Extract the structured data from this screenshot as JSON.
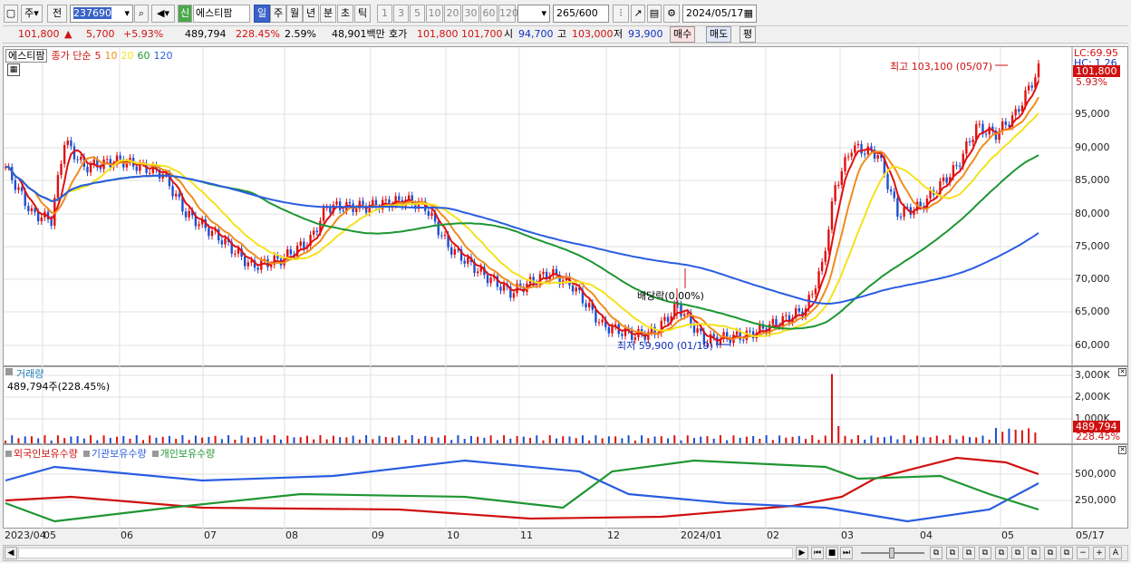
{
  "toolbar": {
    "market": "주",
    "prev": "전",
    "code": "237690",
    "market_tag": "신",
    "name": "에스티팜",
    "periods": [
      "일",
      "주",
      "월",
      "년",
      "분",
      "초",
      "틱"
    ],
    "active_period": "일",
    "intervals": [
      "1",
      "3",
      "5",
      "10",
      "20",
      "30",
      "60",
      "120"
    ],
    "count": "265",
    "count_max": "/600",
    "date": "2024/05/17"
  },
  "quote": {
    "price": "101,800",
    "change": "5,700",
    "rate": "+5.93%",
    "volume": "489,794",
    "vol_rate": "228.45%",
    "turnover": "2.59%",
    "amount": "48,901백만",
    "ask_label": "호가",
    "ask": "101,800",
    "bid": "101,700",
    "open_label": "시",
    "open": "94,700",
    "high_label": "고",
    "high": "103,000",
    "low_label": "저",
    "low": "93,900",
    "buy": "매수",
    "sell": "매도",
    "eval": "평"
  },
  "price_panel": {
    "legend_name": "에스티팜",
    "legend_type": "종가 단순",
    "ma": [
      "5",
      "10",
      "20",
      "60",
      "120"
    ],
    "ma_colors": [
      "#e01010",
      "#f08c1e",
      "#f4e21e",
      "#1e9632",
      "#2a5de0"
    ],
    "lc": "LC:69.95",
    "hc": "HC: 1.26",
    "price_tag": "101,800",
    "rate_tag": "5.93%",
    "yticks": [
      "95,000",
      "90,000",
      "85,000",
      "80,000",
      "75,000",
      "70,000",
      "65,000",
      "60,000"
    ],
    "high_note": "최고 103,100 (05/07)",
    "low_note": "최저 59,900 (01/19)",
    "dividend_note": "배당락(0.00%)"
  },
  "volume_panel": {
    "title": "거래량",
    "value": "489,794주(228.45%)",
    "yticks": [
      "3,000K",
      "2,000K",
      "1,000K"
    ],
    "tag": "489,794",
    "tag2": "228.45%"
  },
  "holding_panel": {
    "labels": [
      "외국인보유수량",
      "기관보유수량",
      "개인보유수량"
    ],
    "colors": [
      "#d01010",
      "#2a5de0",
      "#1e9632"
    ],
    "yticks": [
      "500,000",
      "250,000"
    ]
  },
  "xaxis": {
    "labels": [
      "2023/04",
      "05",
      "06",
      "07",
      "08",
      "09",
      "10",
      "11",
      "12",
      "2024/01",
      "02",
      "03",
      "04",
      "05",
      "05/17"
    ]
  }
}
